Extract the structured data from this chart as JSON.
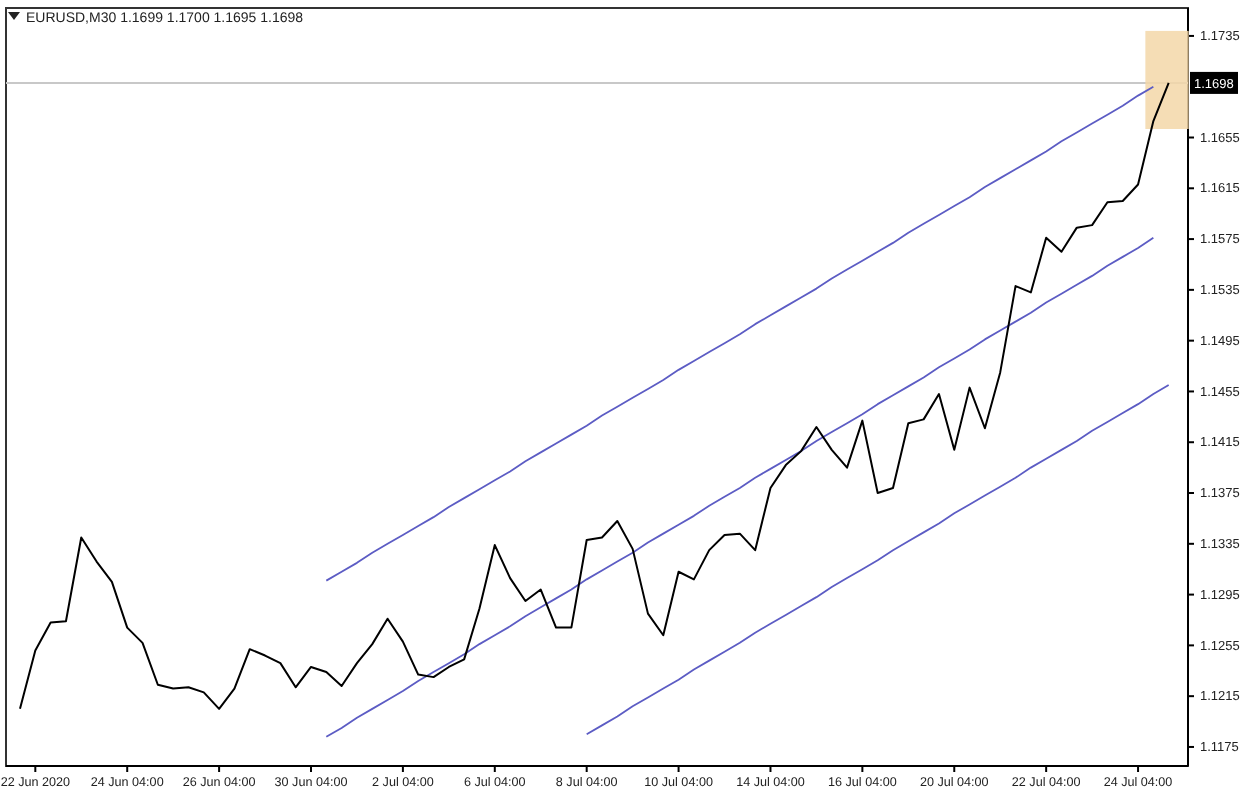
{
  "chart_data": {
    "type": "line",
    "title": "EURUSD,M30 1.1699 1.1700 1.1695 1.1698",
    "categories": [
      null,
      "22 Jun 2020",
      null,
      null,
      null,
      null,
      null,
      "24 Jun 04:00",
      null,
      null,
      null,
      null,
      null,
      "26 Jun 04:00",
      null,
      null,
      null,
      null,
      null,
      "30 Jun 04:00",
      null,
      null,
      null,
      null,
      null,
      "2 Jul 04:00",
      null,
      null,
      null,
      null,
      null,
      "6 Jul 04:00",
      null,
      null,
      null,
      null,
      null,
      "8 Jul 04:00",
      null,
      null,
      null,
      null,
      null,
      "10 Jul 04:00",
      null,
      null,
      null,
      null,
      null,
      "14 Jul 04:00",
      null,
      null,
      null,
      null,
      null,
      "16 Jul 04:00",
      null,
      null,
      null,
      null,
      null,
      "20 Jul 04:00",
      null,
      null,
      null,
      null,
      null,
      "22 Jul 04:00",
      null,
      null,
      null,
      null,
      null,
      "24 Jul 04:00",
      null,
      null,
      null
    ],
    "series": [
      {
        "color": "#000000",
        "values": [
          1.1205,
          1.1251,
          1.1273,
          1.1274,
          1.134,
          1.1321,
          1.1305,
          1.1269,
          1.1257,
          1.1224,
          1.1221,
          1.1222,
          1.1218,
          1.1205,
          1.1221,
          1.1252,
          1.1247,
          1.1241,
          1.1222,
          1.1238,
          1.1234,
          1.1223,
          1.1241,
          1.1256,
          1.1276,
          1.1258,
          1.1232,
          1.123,
          1.1238,
          1.1244,
          1.1284,
          1.1334,
          1.1308,
          1.129,
          1.1299,
          1.1269,
          1.1269,
          1.1338,
          1.134,
          1.1353,
          1.1331,
          1.128,
          1.1263,
          1.1313,
          1.1307,
          1.133,
          1.1342,
          1.1343,
          1.133,
          1.1379,
          1.1397,
          1.1408,
          1.1427,
          1.1409,
          1.1395,
          1.1432,
          1.1375,
          1.1379,
          1.143,
          1.1433,
          1.1453,
          1.1409,
          1.1458,
          1.1426,
          1.147,
          1.1538,
          1.1533,
          1.1576,
          1.1565,
          1.1584,
          1.1586,
          1.1604,
          1.1605,
          1.1618,
          1.1668,
          1.1698,
          null
        ]
      },
      {
        "color": "#5c5cc4",
        "values": [
          null,
          null,
          null,
          null,
          null,
          null,
          null,
          null,
          null,
          null,
          null,
          null,
          null,
          null,
          null,
          null,
          null,
          null,
          null,
          null,
          1.1306,
          1.1313,
          1.132,
          1.1328,
          1.1335,
          1.1342,
          1.1349,
          1.1356,
          1.1364,
          1.1371,
          1.1378,
          1.1385,
          1.1392,
          1.14,
          1.1407,
          1.1414,
          1.1421,
          1.1428,
          1.1436,
          1.1443,
          1.145,
          1.1457,
          1.1464,
          1.1472,
          1.1479,
          1.1486,
          1.1493,
          1.15,
          1.1508,
          1.1515,
          1.1522,
          1.1529,
          1.1536,
          1.1544,
          1.1551,
          1.1558,
          1.1565,
          1.1572,
          1.158,
          1.1587,
          1.1594,
          1.1601,
          1.1608,
          1.1616,
          1.1623,
          1.163,
          1.1637,
          1.1644,
          1.1652,
          1.1659,
          1.1666,
          1.1673,
          1.168,
          1.1688,
          1.1695,
          null,
          null
        ]
      },
      {
        "color": "#5c5cc4",
        "values": [
          null,
          null,
          null,
          null,
          null,
          null,
          null,
          null,
          null,
          null,
          null,
          null,
          null,
          null,
          null,
          null,
          null,
          null,
          null,
          null,
          1.1183,
          1.119,
          1.1198,
          1.1205,
          1.1212,
          1.1219,
          1.1227,
          1.1234,
          1.1241,
          1.1248,
          1.1256,
          1.1263,
          1.127,
          1.1278,
          1.1285,
          1.1292,
          1.1299,
          1.1307,
          1.1314,
          1.1321,
          1.1328,
          1.1336,
          1.1343,
          1.135,
          1.1357,
          1.1365,
          1.1372,
          1.1379,
          1.1387,
          1.1394,
          1.1401,
          1.1408,
          1.1416,
          1.1423,
          1.143,
          1.1437,
          1.1445,
          1.1452,
          1.1459,
          1.1466,
          1.1474,
          1.1481,
          1.1488,
          1.1496,
          1.1503,
          1.151,
          1.1517,
          1.1525,
          1.1532,
          1.1539,
          1.1546,
          1.1554,
          1.1561,
          1.1568,
          1.1576,
          null,
          null
        ]
      },
      {
        "color": "#5c5cc4",
        "values": [
          null,
          null,
          null,
          null,
          null,
          null,
          null,
          null,
          null,
          null,
          null,
          null,
          null,
          null,
          null,
          null,
          null,
          null,
          null,
          null,
          null,
          null,
          null,
          null,
          null,
          null,
          null,
          null,
          null,
          null,
          null,
          null,
          null,
          null,
          null,
          null,
          null,
          1.1185,
          1.1192,
          1.1199,
          1.1207,
          1.1214,
          1.1221,
          1.1228,
          1.1236,
          1.1243,
          1.125,
          1.1257,
          1.1265,
          1.1272,
          1.1279,
          1.1286,
          1.1293,
          1.1301,
          1.1308,
          1.1315,
          1.1322,
          1.133,
          1.1337,
          1.1344,
          1.1351,
          1.1359,
          1.1366,
          1.1373,
          1.138,
          1.1387,
          1.1395,
          1.1402,
          1.1409,
          1.1416,
          1.1424,
          1.1431,
          1.1438,
          1.1445,
          1.1453,
          1.146,
          null
        ]
      }
    ],
    "ylim": [
      1.116,
      1.1757
    ],
    "yticks": [
      1.1175,
      1.1215,
      1.1255,
      1.1295,
      1.1335,
      1.1375,
      1.1415,
      1.1455,
      1.1495,
      1.1535,
      1.1575,
      1.1615,
      1.1655,
      1.1735
    ],
    "ref_lines": [
      {
        "axis": "y",
        "value": 1.1698,
        "label": "1.1698",
        "color": "#c8c8c8"
      }
    ],
    "grid": false,
    "marker": "none",
    "line_style": "solid"
  }
}
